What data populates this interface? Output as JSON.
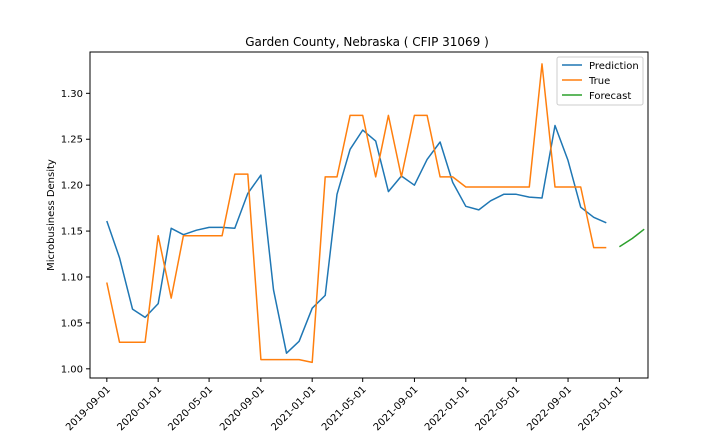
{
  "chart_data": {
    "type": "line",
    "title": "Garden County, Nebraska ( CFIP 31069 )",
    "xlabel": "",
    "ylabel": "Microbusiness Density",
    "ylim": [
      0.99,
      1.345
    ],
    "xlim": [
      "2019-07-23",
      "2023-03-10"
    ],
    "yticks": [
      1.0,
      1.05,
      1.1,
      1.15,
      1.2,
      1.25,
      1.3
    ],
    "ytick_labels": [
      "1.00",
      "1.05",
      "1.10",
      "1.15",
      "1.20",
      "1.25",
      "1.30"
    ],
    "xticks": [
      "2019-09-01",
      "2020-01-01",
      "2020-05-01",
      "2020-09-01",
      "2021-01-01",
      "2021-05-01",
      "2021-09-01",
      "2022-01-01",
      "2022-05-01",
      "2022-09-01",
      "2023-01-01"
    ],
    "grid": false,
    "legend": {
      "placement": "top-right",
      "entries": [
        "Prediction",
        "True",
        "Forecast"
      ]
    },
    "series": [
      {
        "name": "Prediction",
        "color": "#1f77b4",
        "x": [
          "2019-09-01",
          "2019-10-01",
          "2019-11-01",
          "2019-12-01",
          "2020-01-01",
          "2020-02-01",
          "2020-03-01",
          "2020-04-01",
          "2020-05-01",
          "2020-06-01",
          "2020-07-01",
          "2020-08-01",
          "2020-09-01",
          "2020-10-01",
          "2020-11-01",
          "2020-12-01",
          "2021-01-01",
          "2021-02-01",
          "2021-03-01",
          "2021-04-01",
          "2021-05-01",
          "2021-06-01",
          "2021-07-01",
          "2021-08-01",
          "2021-09-01",
          "2021-10-01",
          "2021-11-01",
          "2021-12-01",
          "2022-01-01",
          "2022-02-01",
          "2022-03-01",
          "2022-04-01",
          "2022-05-01",
          "2022-06-01",
          "2022-07-01",
          "2022-08-01",
          "2022-09-01",
          "2022-10-01",
          "2022-11-01",
          "2022-12-01"
        ],
        "values": [
          1.161,
          1.121,
          1.065,
          1.056,
          1.071,
          1.153,
          1.146,
          1.151,
          1.154,
          1.154,
          1.153,
          1.191,
          1.211,
          1.086,
          1.017,
          1.03,
          1.066,
          1.08,
          1.19,
          1.239,
          1.26,
          1.248,
          1.193,
          1.21,
          1.2,
          1.228,
          1.247,
          1.203,
          1.177,
          1.173,
          1.183,
          1.19,
          1.19,
          1.187,
          1.186,
          1.265,
          1.227,
          1.176,
          1.165,
          1.159
        ]
      },
      {
        "name": "True",
        "color": "#ff7f0e",
        "x": [
          "2019-09-01",
          "2019-10-01",
          "2019-11-01",
          "2019-12-01",
          "2020-01-01",
          "2020-02-01",
          "2020-03-01",
          "2020-04-01",
          "2020-05-01",
          "2020-06-01",
          "2020-07-01",
          "2020-08-01",
          "2020-09-01",
          "2020-10-01",
          "2020-11-01",
          "2020-12-01",
          "2021-01-01",
          "2021-02-01",
          "2021-03-01",
          "2021-04-01",
          "2021-05-01",
          "2021-06-01",
          "2021-07-01",
          "2021-08-01",
          "2021-09-01",
          "2021-10-01",
          "2021-11-01",
          "2021-12-01",
          "2022-01-01",
          "2022-02-01",
          "2022-03-01",
          "2022-04-01",
          "2022-05-01",
          "2022-06-01",
          "2022-07-01",
          "2022-08-01",
          "2022-09-01",
          "2022-10-01",
          "2022-11-01",
          "2022-12-01"
        ],
        "values": [
          1.094,
          1.029,
          1.029,
          1.029,
          1.145,
          1.077,
          1.145,
          1.145,
          1.145,
          1.145,
          1.212,
          1.212,
          1.01,
          1.01,
          1.01,
          1.01,
          1.007,
          1.209,
          1.209,
          1.276,
          1.276,
          1.209,
          1.276,
          1.209,
          1.276,
          1.276,
          1.209,
          1.209,
          1.198,
          1.198,
          1.198,
          1.198,
          1.198,
          1.198,
          1.332,
          1.198,
          1.198,
          1.198,
          1.132,
          1.132
        ]
      },
      {
        "name": "Forecast",
        "color": "#2ca02c",
        "x": [
          "2023-01-01",
          "2023-02-01",
          "2023-03-01"
        ],
        "values": [
          1.133,
          1.142,
          1.152
        ]
      }
    ]
  }
}
